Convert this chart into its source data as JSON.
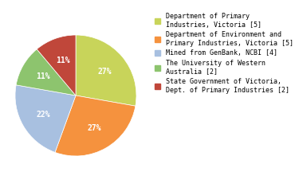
{
  "labels": [
    "Department of Primary\nIndustries, Victoria [5]",
    "Department of Environment and\nPrimary Industries, Victoria [5]",
    "Mined from GenBank, NCBI [4]",
    "The University of Western\nAustralia [2]",
    "State Government of Victoria,\nDept. of Primary Industries [2]"
  ],
  "values": [
    5,
    5,
    4,
    2,
    2
  ],
  "colors": [
    "#c8d45a",
    "#f5923e",
    "#a8c0e0",
    "#8dc46e",
    "#c0473a"
  ],
  "pct_labels": [
    "27%",
    "27%",
    "22%",
    "11%",
    "11%"
  ],
  "startangle": 90,
  "pct_fontsize": 7,
  "legend_fontsize": 6.0
}
